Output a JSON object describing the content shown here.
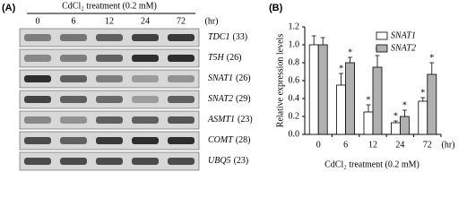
{
  "panel_a": {
    "label": "(A)",
    "title": "CdCl₂ treatment (0.2 mM)",
    "times": [
      "0",
      "6",
      "12",
      "24",
      "72"
    ],
    "time_unit": "(hr)",
    "rows": [
      {
        "gene": "TDC1",
        "cycles": "(33)",
        "bands": [
          0.45,
          0.5,
          0.6,
          0.75,
          0.8
        ]
      },
      {
        "gene": "T5H",
        "cycles": "(26)",
        "bands": [
          0.4,
          0.45,
          0.6,
          0.85,
          0.85
        ]
      },
      {
        "gene": "SNAT1",
        "cycles": "(26)",
        "bands": [
          0.85,
          0.6,
          0.45,
          0.3,
          0.35
        ]
      },
      {
        "gene": "SNAT2",
        "cycles": "(29)",
        "bands": [
          0.75,
          0.6,
          0.55,
          0.3,
          0.6
        ]
      },
      {
        "gene": "ASMT1",
        "cycles": "(23)",
        "bands": [
          0.4,
          0.35,
          0.6,
          0.6,
          0.65
        ]
      },
      {
        "gene": "COMT",
        "cycles": "(28)",
        "bands": [
          0.7,
          0.6,
          0.8,
          0.85,
          0.85
        ]
      },
      {
        "gene": "UBQ5",
        "cycles": "(23)",
        "bands": [
          0.7,
          0.7,
          0.7,
          0.7,
          0.7
        ]
      }
    ]
  },
  "chart_data": {
    "type": "bar",
    "label": "(B)",
    "x_label": "CdCl₂ treatment (0.2 mM)",
    "x_unit": "(hr)",
    "y_label": "Relative expression levels",
    "categories": [
      "0",
      "6",
      "12",
      "24",
      "72"
    ],
    "series": [
      {
        "name": "SNAT1",
        "color": "#ffffff",
        "values": [
          1.0,
          0.55,
          0.25,
          0.13,
          0.37
        ],
        "errors": [
          0.1,
          0.13,
          0.08,
          0.02,
          0.04
        ],
        "markers": [
          null,
          "*",
          "*",
          "*",
          "*"
        ]
      },
      {
        "name": "SNAT2",
        "color": "#b0b0b0",
        "values": [
          1.0,
          0.8,
          0.75,
          0.2,
          0.67
        ],
        "errors": [
          0.08,
          0.06,
          0.13,
          0.07,
          0.13
        ],
        "markers": [
          null,
          "*",
          "*",
          "*",
          "*"
        ]
      }
    ],
    "ylim": [
      0,
      1.2
    ],
    "yticks": [
      {
        "value": 0,
        "label": "0.0"
      },
      {
        "value": 0.2,
        "label": "0.2"
      },
      {
        "value": 0.4,
        "label": "0.4"
      },
      {
        "value": 0.6,
        "label": "0.6"
      },
      {
        "value": 0.8,
        "label": "0.8"
      },
      {
        "value": 1.0,
        "label": "1.0"
      },
      {
        "value": 1.2,
        "label": "1.2"
      }
    ]
  }
}
